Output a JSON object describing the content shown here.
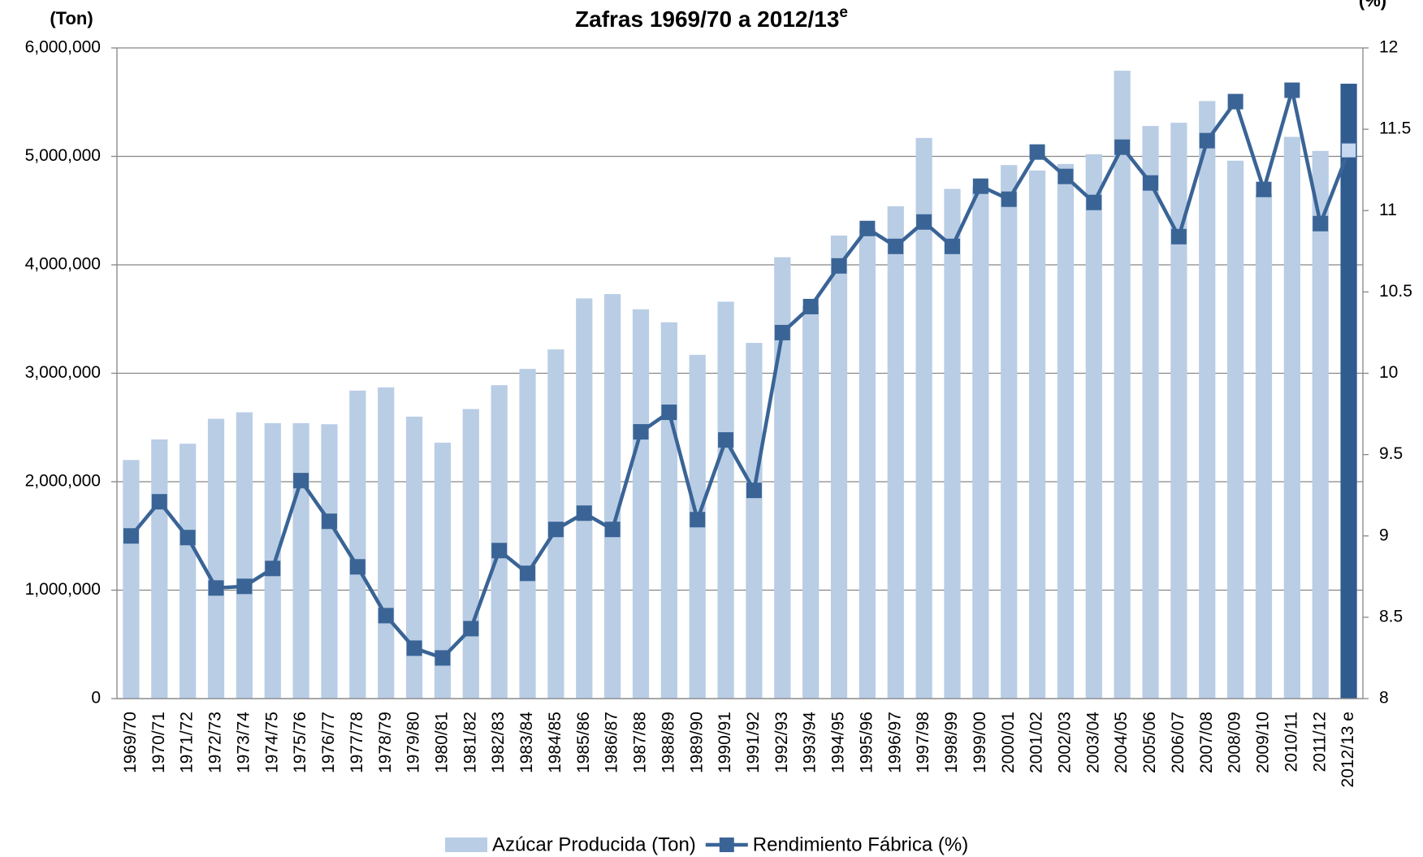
{
  "chart_data": {
    "type": "bar-line",
    "title": "Zafras 1969/70 a 2012/13",
    "title_superscript": "e",
    "y_label": "(Ton)",
    "y2_label": "(%)",
    "categories": [
      "1969/70",
      "1970/71",
      "1971/72",
      "1972/73",
      "1973/74",
      "1974/75",
      "1975/76",
      "1976/77",
      "1977/78",
      "1978/79",
      "1979/80",
      "1980/81",
      "1981/82",
      "1982/83",
      "1983/84",
      "1984/85",
      "1985/86",
      "1986/87",
      "1987/88",
      "1988/89",
      "1989/90",
      "1990/91",
      "1991/92",
      "1992/93",
      "1993/94",
      "1994/95",
      "1995/96",
      "1996/97",
      "1997/98",
      "1998/99",
      "1999/00",
      "2000/01",
      "2001/02",
      "2002/03",
      "2003/04",
      "2004/05",
      "2005/06",
      "2006/07",
      "2007/08",
      "2008/09",
      "2009/10",
      "2010/11",
      "2011/12",
      "2012/13 e"
    ],
    "series": [
      {
        "name": "Azúcar Producida (Ton)",
        "type": "bar",
        "color": "#b9cde5",
        "colors": [
          "#b9cde5",
          "#b9cde5",
          "#b9cde5",
          "#b9cde5",
          "#b9cde5",
          "#b9cde5",
          "#b9cde5",
          "#b9cde5",
          "#b9cde5",
          "#b9cde5",
          "#b9cde5",
          "#b9cde5",
          "#b9cde5",
          "#b9cde5",
          "#b9cde5",
          "#b9cde5",
          "#b9cde5",
          "#b9cde5",
          "#b9cde5",
          "#b9cde5",
          "#b9cde5",
          "#b9cde5",
          "#b9cde5",
          "#b9cde5",
          "#b9cde5",
          "#b9cde5",
          "#b9cde5",
          "#b9cde5",
          "#b9cde5",
          "#b9cde5",
          "#b9cde5",
          "#b9cde5",
          "#b9cde5",
          "#b9cde5",
          "#b9cde5",
          "#b9cde5",
          "#b9cde5",
          "#b9cde5",
          "#b9cde5",
          "#b9cde5",
          "#b9cde5",
          "#b9cde5",
          "#b9cde5",
          "#2f5b8f"
        ],
        "values": [
          2200000,
          2390000,
          2350000,
          2580000,
          2640000,
          2540000,
          2540000,
          2530000,
          2840000,
          2870000,
          2600000,
          2360000,
          2670000,
          2890000,
          3040000,
          3220000,
          3690000,
          3730000,
          3590000,
          3470000,
          3170000,
          3660000,
          3280000,
          4070000,
          3620000,
          4270000,
          4330000,
          4540000,
          5170000,
          4700000,
          4720000,
          4920000,
          4870000,
          4930000,
          5020000,
          5790000,
          5280000,
          5310000,
          5510000,
          4960000,
          4650000,
          5180000,
          5050000,
          5670000
        ]
      },
      {
        "name": "Rendimiento Fábrica (%)",
        "type": "line",
        "axis": "y2",
        "color": "#3a6496",
        "marker_colors": [
          "#3a6496",
          "#3a6496",
          "#3a6496",
          "#3a6496",
          "#3a6496",
          "#3a6496",
          "#3a6496",
          "#3a6496",
          "#3a6496",
          "#3a6496",
          "#3a6496",
          "#3a6496",
          "#3a6496",
          "#3a6496",
          "#3a6496",
          "#3a6496",
          "#3a6496",
          "#3a6496",
          "#3a6496",
          "#3a6496",
          "#3a6496",
          "#3a6496",
          "#3a6496",
          "#3a6496",
          "#3a6496",
          "#3a6496",
          "#3a6496",
          "#3a6496",
          "#3a6496",
          "#3a6496",
          "#3a6496",
          "#3a6496",
          "#3a6496",
          "#3a6496",
          "#3a6496",
          "#3a6496",
          "#3a6496",
          "#3a6496",
          "#3a6496",
          "#3a6496",
          "#3a6496",
          "#3a6496",
          "#3a6496",
          "#c6d9f0"
        ],
        "values": [
          9.0,
          9.21,
          8.99,
          8.68,
          8.69,
          8.8,
          9.34,
          9.09,
          8.81,
          8.51,
          8.31,
          8.25,
          8.43,
          8.91,
          8.77,
          9.04,
          9.14,
          9.04,
          9.64,
          9.76,
          9.1,
          9.59,
          9.28,
          10.25,
          10.41,
          10.66,
          10.89,
          10.78,
          10.93,
          10.78,
          11.15,
          11.07,
          11.36,
          11.21,
          11.05,
          11.39,
          11.17,
          10.84,
          11.43,
          11.67,
          11.13,
          11.74,
          10.92,
          11.37
        ]
      }
    ],
    "ylim": [
      0,
      6000000
    ],
    "yticks": [
      {
        "value": 0,
        "label": "0"
      },
      {
        "value": 1000000,
        "label": "1,000,000"
      },
      {
        "value": 2000000,
        "label": "2,000,000"
      },
      {
        "value": 3000000,
        "label": "3,000,000"
      },
      {
        "value": 4000000,
        "label": "4,000,000"
      },
      {
        "value": 5000000,
        "label": "5,000,000"
      },
      {
        "value": 6000000,
        "label": "6,000,000"
      }
    ],
    "y2lim": [
      8,
      12
    ],
    "y2ticks": [
      8,
      8.5,
      9,
      9.5,
      10,
      10.5,
      11,
      11.5,
      12
    ],
    "grid": true,
    "legend": "bottom"
  }
}
